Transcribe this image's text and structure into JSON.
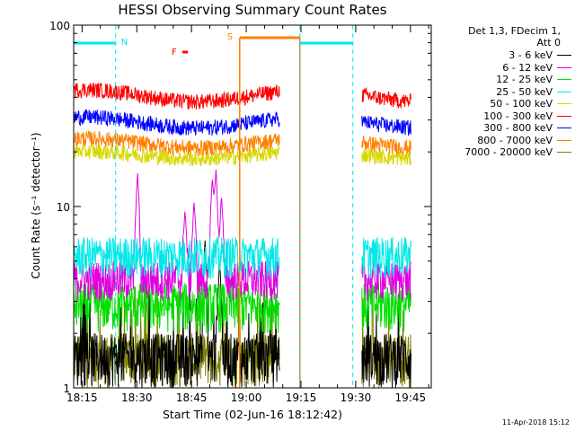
{
  "chart_data": {
    "type": "line",
    "title": "HESSI Observing Summary Count Rates",
    "xlabel": "Start Time (02-Jun-16 18:12:42)",
    "ylabel": "Count Rate (s⁻¹ detector⁻¹)",
    "yscale": "log",
    "ylim": [
      1,
      100
    ],
    "xlim_minutes": [
      0,
      98
    ],
    "x_tick_labels": [
      "18:15",
      "18:30",
      "18:45",
      "19:00",
      "19:15",
      "19:30",
      "19:45"
    ],
    "y_tick_labels": [
      "1",
      "10",
      "100"
    ],
    "legend": {
      "placement": "right",
      "title_lines": [
        "Det 1,3, FDecim 1,",
        "Att 0"
      ],
      "entries": [
        {
          "label": "3 - 6 keV",
          "color": "#000000"
        },
        {
          "label": "6 - 12 keV",
          "color": "#e000e0"
        },
        {
          "label": "12 - 25 keV",
          "color": "#00e000"
        },
        {
          "label": "25 - 50 keV",
          "color": "#00e8e8"
        },
        {
          "label": "50 - 100 keV",
          "color": "#d8d800"
        },
        {
          "label": "100 - 300 keV",
          "color": "#ff0000"
        },
        {
          "label": "300 - 800 keV",
          "color": "#0000ff"
        },
        {
          "label": "800 - 7000 keV",
          "color": "#ff8000"
        },
        {
          "label": "7000 - 20000 keV",
          "color": "#808000"
        }
      ]
    },
    "segments_minutes": [
      [
        0,
        56.5
      ],
      [
        79,
        92.5
      ]
    ],
    "series": [
      {
        "name": "3 - 6 keV",
        "color": "#000000",
        "approx_level": [
          1.0,
          2.0
        ],
        "bursts": [
          {
            "x": 36,
            "peak": 6.5
          },
          {
            "x": 40,
            "peak": 5.0
          }
        ]
      },
      {
        "name": "6 - 12 keV",
        "color": "#e000e0",
        "approx_level": [
          3.0,
          5.0
        ],
        "bursts": [
          {
            "x": 17.5,
            "peak": 15.5
          },
          {
            "x": 30.5,
            "peak": 9.5
          },
          {
            "x": 33,
            "peak": 10.5
          },
          {
            "x": 38,
            "peak": 14.5
          },
          {
            "x": 39,
            "peak": 16.0
          },
          {
            "x": 40.5,
            "peak": 11.5
          }
        ]
      },
      {
        "name": "12 - 25 keV",
        "color": "#00e000",
        "approx_level": [
          2.0,
          3.8
        ]
      },
      {
        "name": "25 - 50 keV",
        "color": "#00e8e8",
        "approx_level": [
          4.0,
          6.8
        ]
      },
      {
        "name": "50 - 100 keV",
        "color": "#d8d800",
        "approx_level": [
          17,
          21
        ]
      },
      {
        "name": "100 - 300 keV",
        "color": "#ff0000",
        "approx_level": [
          33,
          47
        ]
      },
      {
        "name": "300 - 800 keV",
        "color": "#0000ff",
        "approx_level": [
          24,
          33
        ]
      },
      {
        "name": "800 - 7000 keV",
        "color": "#ff8000",
        "approx_level": [
          19,
          25
        ]
      },
      {
        "name": "7000 - 20000 keV",
        "color": "#808000",
        "approx_level": [
          1.0,
          2.0
        ]
      }
    ],
    "annotations": [
      {
        "text": "N",
        "color": "#00e8e8",
        "bar_minutes": [
          0,
          11.5
        ],
        "dashed_minutes": [
          0,
          11.5
        ]
      },
      {
        "text": "F",
        "color": "#ff0000",
        "bar_minutes": [
          29.8,
          31.3
        ]
      },
      {
        "text": "S",
        "color": "#ff8000",
        "bar_minutes": [
          45.5,
          62
        ]
      },
      {
        "text": "",
        "color": "#00e8e8",
        "bar_minutes": [
          62,
          76.5
        ],
        "dashed_minutes": [
          62,
          76.5
        ]
      }
    ]
  },
  "footer_timestamp": "11-Apr-2018 15:12"
}
